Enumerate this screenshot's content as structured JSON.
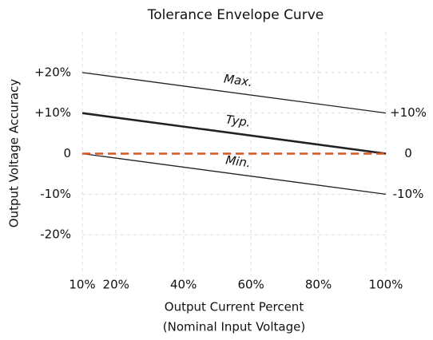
{
  "chart_data": {
    "type": "line",
    "title": "Tolerance Envelope Curve",
    "x_label": [
      "Output Current Percent",
      "(Nominal Input Voltage)"
    ],
    "y_label": "Output Voltage Accuracy",
    "x": [
      10,
      100
    ],
    "series": [
      {
        "name": "Max.",
        "color": "#222222",
        "width": 1.3,
        "values": [
          20,
          10
        ]
      },
      {
        "name": "Typ.",
        "color": "#222222",
        "width": 2.6,
        "values": [
          10,
          0
        ]
      },
      {
        "name": "Min.",
        "color": "#222222",
        "width": 1.3,
        "values": [
          0,
          -10
        ]
      },
      {
        "color": "#d9541e",
        "width": 2.4,
        "dashed": true,
        "values": [
          0,
          0
        ]
      }
    ],
    "xlim": [
      10,
      100
    ],
    "xticks": [
      {
        "value": 10,
        "label": "10%"
      },
      {
        "value": 20,
        "label": "20%"
      },
      {
        "value": 40,
        "label": "40%"
      },
      {
        "value": 60,
        "label": "60%"
      },
      {
        "value": 80,
        "label": "80%"
      },
      {
        "value": 100,
        "label": "100%"
      }
    ],
    "ylim": [
      -30,
      30
    ],
    "yticks": [
      {
        "value": 20,
        "label": "+20%"
      },
      {
        "value": 10,
        "label": "+10%"
      },
      0,
      {
        "value": -10,
        "label": "-10%"
      },
      {
        "value": -20,
        "label": "-20%"
      }
    ],
    "y2lim": [
      -30,
      30
    ],
    "y2ticks": [
      {
        "value": 10,
        "label": "+10%"
      },
      0,
      {
        "value": -10,
        "label": "-10%"
      }
    ],
    "grid": true
  }
}
